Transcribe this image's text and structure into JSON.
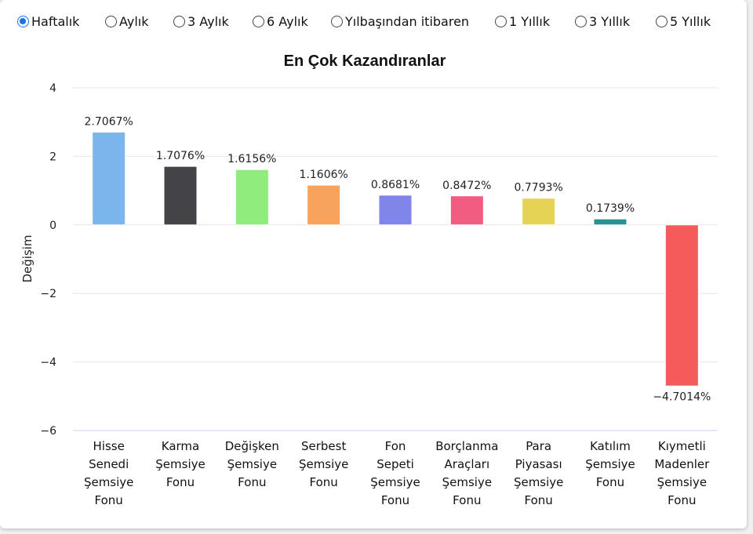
{
  "period_options": [
    {
      "label": "Haftalık",
      "selected": true
    },
    {
      "label": "Aylık",
      "selected": false
    },
    {
      "label": "3 Aylık",
      "selected": false
    },
    {
      "label": "6 Aylık",
      "selected": false
    },
    {
      "label": "Yılbaşından itibaren",
      "selected": false
    },
    {
      "label": "1 Yıllık",
      "selected": false
    },
    {
      "label": "3 Yıllık",
      "selected": false
    },
    {
      "label": "5 Yıllık",
      "selected": false
    }
  ],
  "chart_data": {
    "type": "bar",
    "title": "En Çok Kazandıranlar",
    "xlabel": "",
    "ylabel": "Değişim",
    "ylim": [
      -6,
      4
    ],
    "yticks": [
      4,
      2,
      0,
      -2,
      -4,
      -6
    ],
    "ytick_labels": [
      "4",
      "2",
      "0",
      "−2",
      "−4",
      "−6"
    ],
    "grid": true,
    "categories": [
      [
        "Hisse",
        "Senedi",
        "Şemsiye",
        "Fonu"
      ],
      [
        "Karma",
        "Şemsiye",
        "Fonu"
      ],
      [
        "Değişken",
        "Şemsiye",
        "Fonu"
      ],
      [
        "Serbest",
        "Şemsiye",
        "Fonu"
      ],
      [
        "Fon",
        "Sepeti",
        "Şemsiye",
        "Fonu"
      ],
      [
        "Borçlanma",
        "Araçları",
        "Şemsiye",
        "Fonu"
      ],
      [
        "Para",
        "Piyasası",
        "Şemsiye",
        "Fonu"
      ],
      [
        "Katılım",
        "Şemsiye",
        "Fonu"
      ],
      [
        "Kıymetli",
        "Madenler",
        "Şemsiye",
        "Fonu"
      ]
    ],
    "values": [
      2.7067,
      1.7076,
      1.6156,
      1.1606,
      0.8681,
      0.8472,
      0.7793,
      0.1739,
      -4.7014
    ],
    "value_labels": [
      "2.7067%",
      "1.7076%",
      "1.6156%",
      "1.1606%",
      "0.8681%",
      "0.8472%",
      "0.7793%",
      "0.1739%",
      "−4.7014%"
    ],
    "colors": [
      "#7cb5ec",
      "#434348",
      "#90ed7d",
      "#f7a35c",
      "#8085e9",
      "#f15c80",
      "#e4d354",
      "#2b908f",
      "#f45b5b"
    ]
  }
}
